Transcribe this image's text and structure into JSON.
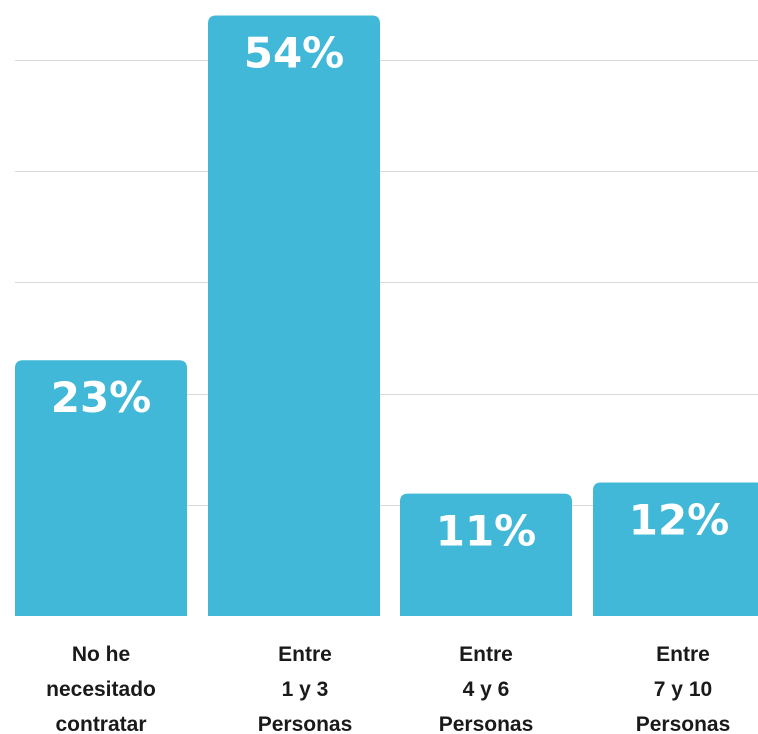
{
  "chart_data": {
    "type": "bar",
    "categories": [
      [
        "No he",
        "necesitado",
        "contratar"
      ],
      [
        "Entre",
        "1 y 3",
        "Personas"
      ],
      [
        "Entre",
        "4 y 6",
        "Personas"
      ],
      [
        "Entre",
        "7 y 10",
        "Personas"
      ]
    ],
    "values": [
      23,
      54,
      11,
      12
    ],
    "data_labels": [
      "23%",
      "54%",
      "11%",
      "12%"
    ],
    "ylim": [
      0,
      55
    ],
    "grid": true,
    "legend": "none",
    "colors": {
      "bar": "#41b8d8",
      "grid": "#d9d9d9",
      "label_text": "#ffffff",
      "category_text": "#1a1a1a"
    }
  }
}
